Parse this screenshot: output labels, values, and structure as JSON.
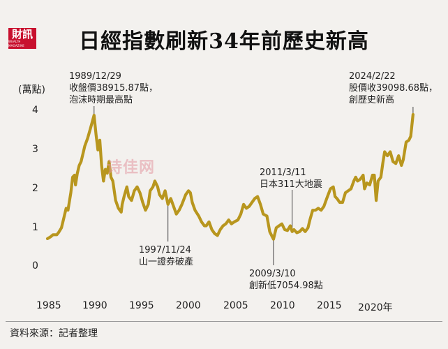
{
  "brand": {
    "logo_text": "財訊",
    "logo_sub": "WEALTH MAGAZINE"
  },
  "title": "日經指數刷新34年前歷史新高",
  "source": "資料來源：記者整理",
  "watermark": "诗佳网",
  "colors": {
    "line": "#b8961e",
    "leader": "#444444",
    "background": "#f3f1ee",
    "logo": "#c8102e"
  },
  "chart_data": {
    "type": "line",
    "title": "日經指數刷新34年前歷史新高",
    "ylabel": "(萬點)",
    "xlabel": "",
    "xlim": [
      1985,
      2024.3
    ],
    "ylim": [
      0,
      4
    ],
    "x_ticks": [
      {
        "value": 1985,
        "label": "1985"
      },
      {
        "value": 1990,
        "label": "1990"
      },
      {
        "value": 1995,
        "label": "1995"
      },
      {
        "value": 2000,
        "label": "2000"
      },
      {
        "value": 2005,
        "label": "2005"
      },
      {
        "value": 2010,
        "label": "2010"
      },
      {
        "value": 2015,
        "label": "2015"
      },
      {
        "value": 2020,
        "label": "2020年"
      }
    ],
    "y_ticks": [
      {
        "value": 0,
        "label": "0"
      },
      {
        "value": 1,
        "label": "1"
      },
      {
        "value": 2,
        "label": "2"
      },
      {
        "value": 3,
        "label": "3"
      },
      {
        "value": 4,
        "label": "4"
      }
    ],
    "grid": false,
    "series": [
      {
        "points": [
          [
            1985.0,
            0.72
          ],
          [
            1985.3,
            0.76
          ],
          [
            1985.6,
            0.82
          ],
          [
            1986.0,
            0.82
          ],
          [
            1986.2,
            0.88
          ],
          [
            1986.5,
            1.0
          ],
          [
            1986.7,
            1.2
          ],
          [
            1987.0,
            1.5
          ],
          [
            1987.2,
            1.45
          ],
          [
            1987.5,
            1.9
          ],
          [
            1987.7,
            2.3
          ],
          [
            1987.9,
            2.35
          ],
          [
            1988.0,
            2.1
          ],
          [
            1988.2,
            2.4
          ],
          [
            1988.4,
            2.6
          ],
          [
            1988.6,
            2.7
          ],
          [
            1988.8,
            2.9
          ],
          [
            1989.0,
            3.1
          ],
          [
            1989.3,
            3.3
          ],
          [
            1989.6,
            3.55
          ],
          [
            1989.99,
            3.89
          ],
          [
            1990.2,
            3.4
          ],
          [
            1990.4,
            3.0
          ],
          [
            1990.6,
            3.25
          ],
          [
            1990.8,
            2.6
          ],
          [
            1991.0,
            2.2
          ],
          [
            1991.2,
            2.5
          ],
          [
            1991.4,
            2.4
          ],
          [
            1991.6,
            2.7
          ],
          [
            1991.8,
            2.3
          ],
          [
            1992.0,
            2.2
          ],
          [
            1992.3,
            1.7
          ],
          [
            1992.6,
            1.5
          ],
          [
            1992.9,
            1.4
          ],
          [
            1993.0,
            1.6
          ],
          [
            1993.2,
            1.8
          ],
          [
            1993.5,
            2.05
          ],
          [
            1993.7,
            1.8
          ],
          [
            1994.0,
            1.7
          ],
          [
            1994.3,
            1.95
          ],
          [
            1994.6,
            2.05
          ],
          [
            1994.9,
            1.9
          ],
          [
            1995.2,
            1.65
          ],
          [
            1995.5,
            1.45
          ],
          [
            1995.8,
            1.6
          ],
          [
            1996.0,
            1.95
          ],
          [
            1996.3,
            2.05
          ],
          [
            1996.5,
            2.2
          ],
          [
            1996.8,
            2.05
          ],
          [
            1997.0,
            1.85
          ],
          [
            1997.3,
            1.75
          ],
          [
            1997.6,
            1.95
          ],
          [
            1997.9,
            1.6
          ],
          [
            1998.2,
            1.75
          ],
          [
            1998.5,
            1.55
          ],
          [
            1998.8,
            1.35
          ],
          [
            1999.1,
            1.45
          ],
          [
            1999.4,
            1.6
          ],
          [
            1999.8,
            1.85
          ],
          [
            2000.1,
            1.95
          ],
          [
            2000.3,
            1.9
          ],
          [
            2000.5,
            1.65
          ],
          [
            2000.8,
            1.45
          ],
          [
            2001.2,
            1.3
          ],
          [
            2001.5,
            1.15
          ],
          [
            2001.8,
            1.05
          ],
          [
            2002.0,
            1.05
          ],
          [
            2002.3,
            1.15
          ],
          [
            2002.6,
            0.95
          ],
          [
            2002.9,
            0.85
          ],
          [
            2003.2,
            0.8
          ],
          [
            2003.5,
            0.95
          ],
          [
            2003.8,
            1.05
          ],
          [
            2004.1,
            1.1
          ],
          [
            2004.4,
            1.2
          ],
          [
            2004.7,
            1.1
          ],
          [
            2005.0,
            1.15
          ],
          [
            2005.4,
            1.2
          ],
          [
            2005.7,
            1.35
          ],
          [
            2006.0,
            1.6
          ],
          [
            2006.3,
            1.5
          ],
          [
            2006.6,
            1.55
          ],
          [
            2006.9,
            1.65
          ],
          [
            2007.2,
            1.75
          ],
          [
            2007.5,
            1.8
          ],
          [
            2007.8,
            1.6
          ],
          [
            2008.1,
            1.35
          ],
          [
            2008.5,
            1.3
          ],
          [
            2008.8,
            0.9
          ],
          [
            2009.0,
            0.8
          ],
          [
            2009.2,
            0.705
          ],
          [
            2009.5,
            1.0
          ],
          [
            2009.8,
            1.05
          ],
          [
            2010.1,
            1.1
          ],
          [
            2010.4,
            0.95
          ],
          [
            2010.7,
            0.93
          ],
          [
            2011.0,
            1.05
          ],
          [
            2011.2,
            0.9
          ],
          [
            2011.4,
            0.95
          ],
          [
            2011.7,
            0.87
          ],
          [
            2012.0,
            0.9
          ],
          [
            2012.3,
            0.98
          ],
          [
            2012.6,
            0.9
          ],
          [
            2012.9,
            1.0
          ],
          [
            2013.1,
            1.2
          ],
          [
            2013.4,
            1.45
          ],
          [
            2013.7,
            1.45
          ],
          [
            2014.0,
            1.5
          ],
          [
            2014.3,
            1.45
          ],
          [
            2014.6,
            1.55
          ],
          [
            2014.9,
            1.75
          ],
          [
            2015.3,
            2.0
          ],
          [
            2015.6,
            2.05
          ],
          [
            2015.8,
            1.8
          ],
          [
            2016.0,
            1.75
          ],
          [
            2016.3,
            1.65
          ],
          [
            2016.6,
            1.65
          ],
          [
            2016.9,
            1.9
          ],
          [
            2017.2,
            1.95
          ],
          [
            2017.5,
            2.0
          ],
          [
            2017.8,
            2.2
          ],
          [
            2018.0,
            2.3
          ],
          [
            2018.2,
            2.2
          ],
          [
            2018.5,
            2.25
          ],
          [
            2018.8,
            2.35
          ],
          [
            2018.95,
            2.0
          ],
          [
            2019.2,
            2.15
          ],
          [
            2019.5,
            2.1
          ],
          [
            2019.8,
            2.35
          ],
          [
            2020.0,
            2.35
          ],
          [
            2020.2,
            1.7
          ],
          [
            2020.4,
            2.2
          ],
          [
            2020.7,
            2.3
          ],
          [
            2020.9,
            2.65
          ],
          [
            2021.1,
            2.95
          ],
          [
            2021.4,
            2.85
          ],
          [
            2021.7,
            2.95
          ],
          [
            2022.0,
            2.7
          ],
          [
            2022.3,
            2.65
          ],
          [
            2022.6,
            2.85
          ],
          [
            2022.9,
            2.6
          ],
          [
            2023.1,
            2.75
          ],
          [
            2023.4,
            3.2
          ],
          [
            2023.7,
            3.25
          ],
          [
            2023.9,
            3.35
          ],
          [
            2024.14,
            3.91
          ]
        ]
      }
    ],
    "annotations": [
      {
        "id": "peak-1989",
        "x": 1989.99,
        "y": 3.89,
        "lines": [
          "1989/12/29",
          "收盤價38915.87點，",
          "泡沫時期最高點"
        ]
      },
      {
        "id": "crisis-1997",
        "x": 1997.9,
        "y": 1.6,
        "lines": [
          "1997/11/24",
          "山一證券破產"
        ]
      },
      {
        "id": "low-2009",
        "x": 2009.2,
        "y": 0.705,
        "lines": [
          "2009/3/10",
          "創新低7054.98點"
        ]
      },
      {
        "id": "quake-2011",
        "x": 2011.2,
        "y": 0.9,
        "lines": [
          "2011/3/11",
          "日本311大地震"
        ]
      },
      {
        "id": "high-2024",
        "x": 2024.14,
        "y": 3.91,
        "lines": [
          "2024/2/22",
          "股價收39098.68點，",
          "創歷史新高"
        ]
      }
    ]
  }
}
